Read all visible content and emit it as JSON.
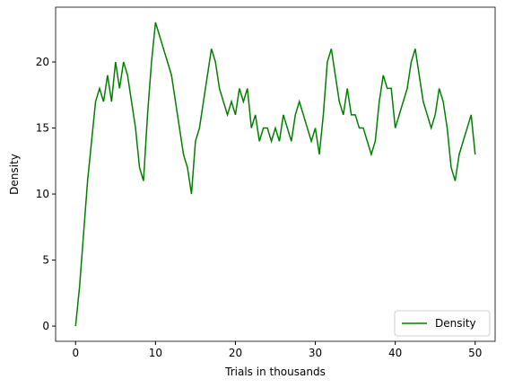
{
  "chart_data": {
    "type": "line",
    "xlabel": "Trials in thousands",
    "ylabel": "Density",
    "x": [
      0,
      0.5,
      1,
      1.5,
      2,
      2.5,
      3,
      3.5,
      4,
      4.5,
      5,
      5.5,
      6,
      6.5,
      7,
      7.5,
      8,
      8.5,
      9,
      9.5,
      10,
      10.5,
      11,
      11.5,
      12,
      12.5,
      13,
      13.5,
      14,
      14.5,
      15,
      15.5,
      16,
      16.5,
      17,
      17.5,
      18,
      18.5,
      19,
      19.5,
      20,
      20.5,
      21,
      21.5,
      22,
      22.5,
      23,
      23.5,
      24,
      24.5,
      25,
      25.5,
      26,
      26.5,
      27,
      27.5,
      28,
      28.5,
      29,
      29.5,
      30,
      30.5,
      31,
      31.5,
      32,
      32.5,
      33,
      33.5,
      34,
      34.5,
      35,
      35.5,
      36,
      36.5,
      37,
      37.5,
      38,
      38.5,
      39,
      39.5,
      40,
      40.5,
      41,
      41.5,
      42,
      42.5,
      43,
      43.5,
      44,
      44.5,
      45,
      45.5,
      46,
      46.5,
      47,
      47.5,
      48,
      48.5,
      49,
      49.5,
      50
    ],
    "series": [
      {
        "name": "Density",
        "color": "#008000",
        "values": [
          0,
          3,
          7,
          11,
          14,
          17,
          18,
          17,
          19,
          17,
          20,
          18,
          20,
          19,
          17,
          15,
          12,
          11,
          16,
          20,
          23,
          22,
          21,
          20,
          19,
          17,
          15,
          13,
          12,
          10,
          14,
          15,
          17,
          19,
          21,
          20,
          18,
          17,
          16,
          17,
          16,
          18,
          17,
          18,
          15,
          16,
          14,
          15,
          15,
          14,
          15,
          14,
          16,
          15,
          14,
          16,
          17,
          16,
          15,
          14,
          15,
          13,
          16,
          20,
          21,
          19,
          17,
          16,
          18,
          16,
          16,
          15,
          15,
          14,
          13,
          14,
          17,
          19,
          18,
          18,
          15,
          16,
          17,
          18,
          20,
          21,
          19,
          17,
          16,
          15,
          16,
          18,
          17,
          15,
          12,
          11,
          13,
          14,
          15,
          16,
          13
        ]
      }
    ],
    "xlim": [
      -2.5,
      52.5
    ],
    "xticks": [
      0,
      10,
      20,
      30,
      40,
      50
    ],
    "ylim": [
      -1.15,
      24.15
    ],
    "yticks": [
      0,
      5,
      10,
      15,
      20
    ],
    "legend": "lower right"
  }
}
